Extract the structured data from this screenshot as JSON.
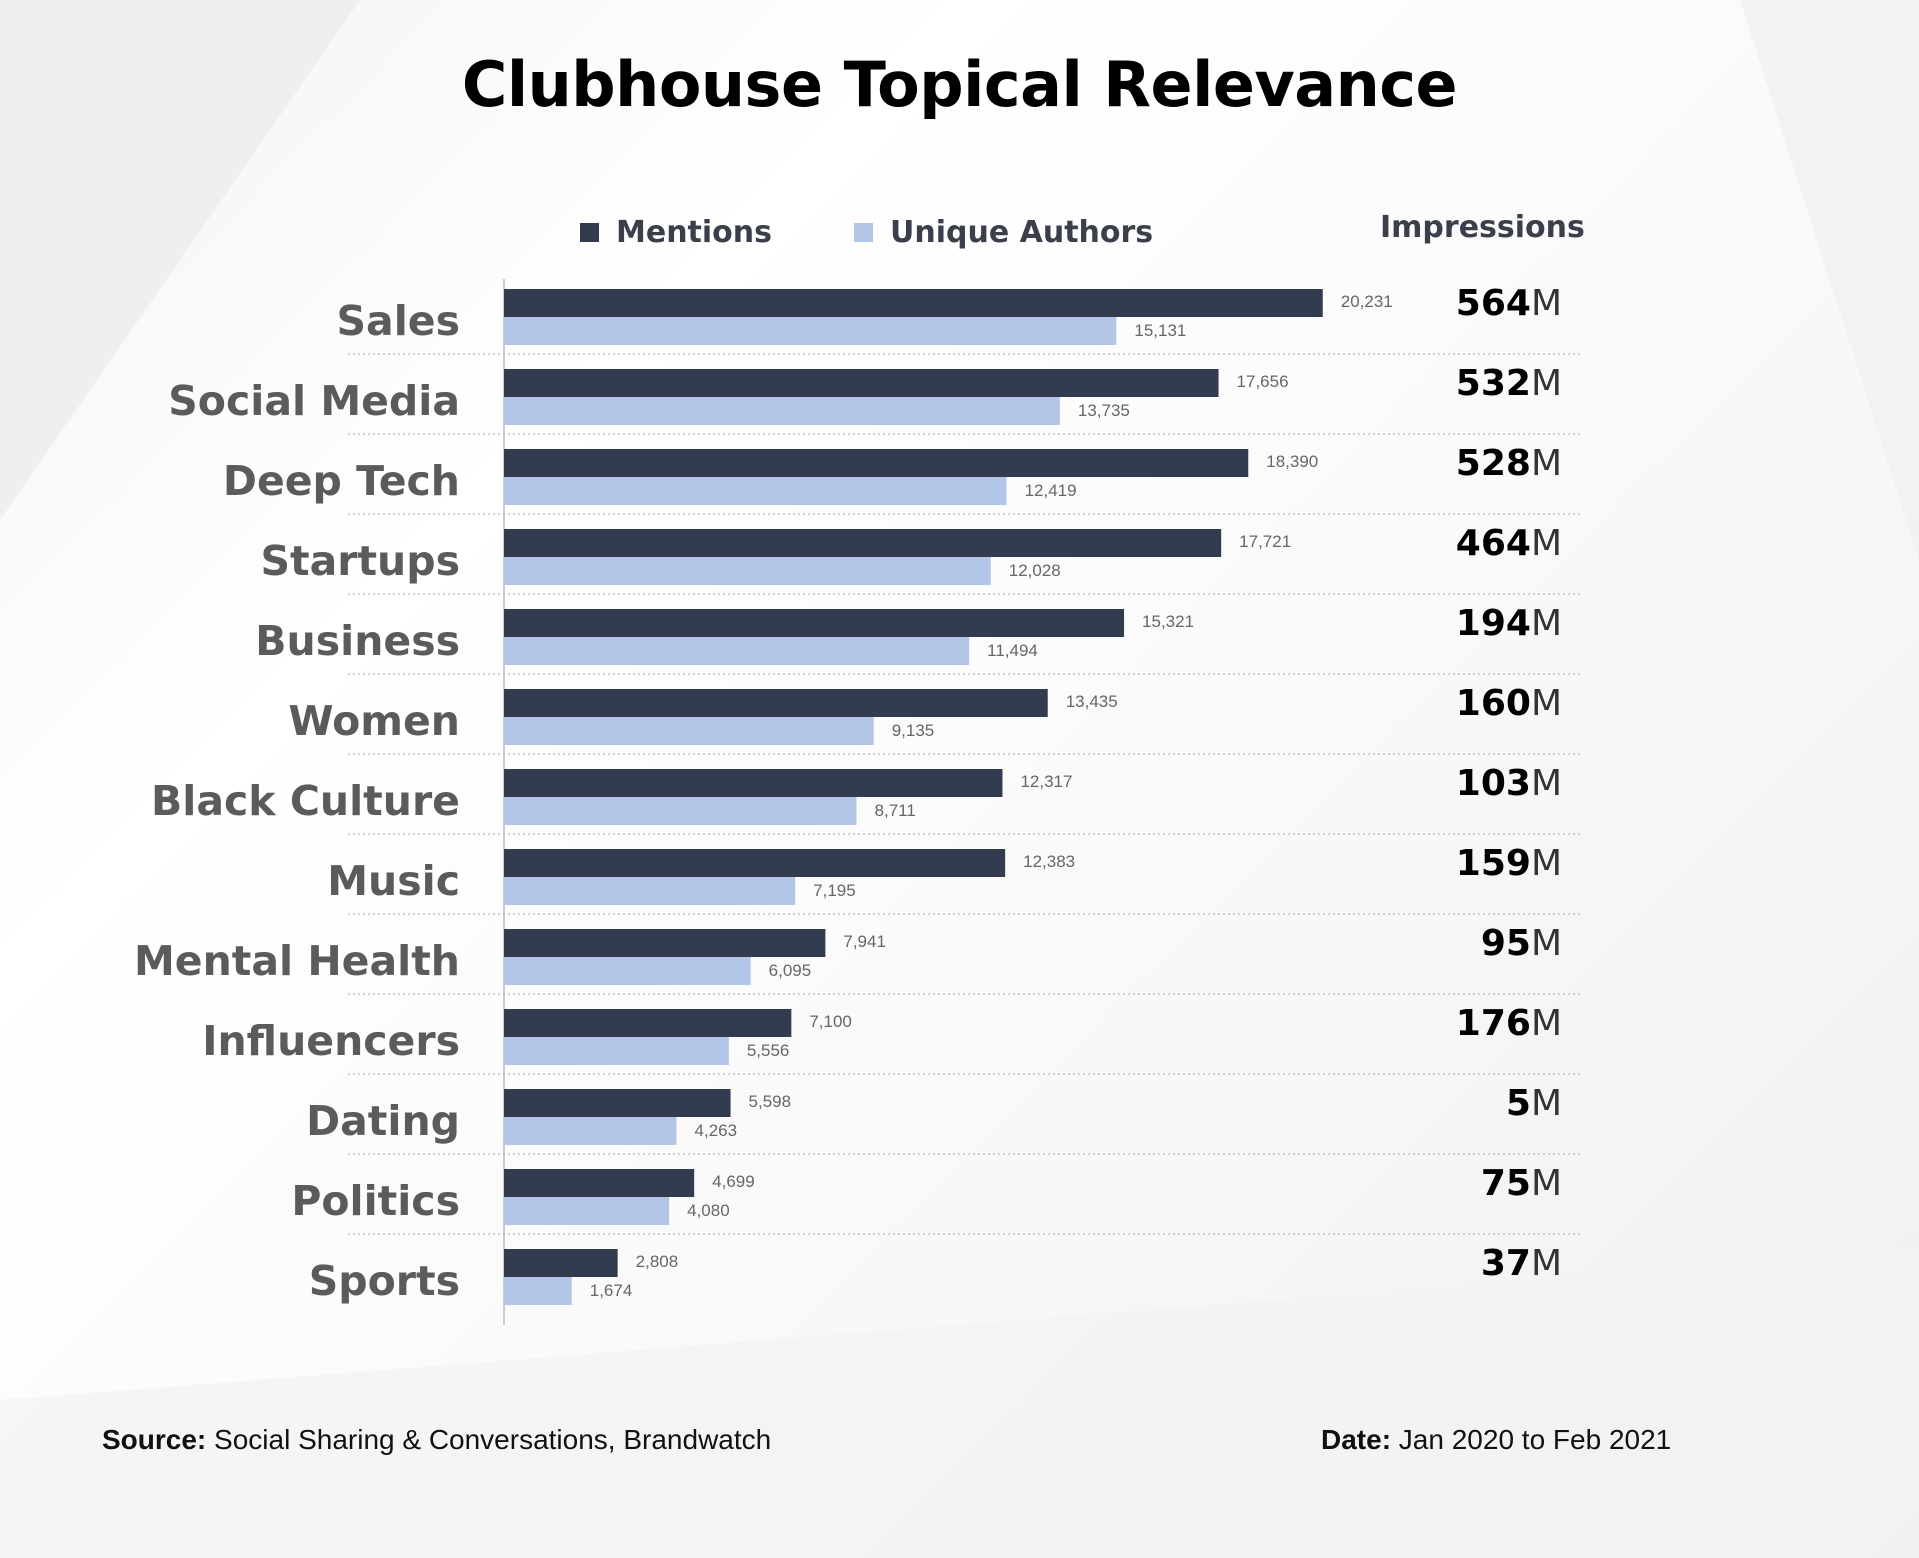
{
  "title": "Clubhouse Topical Relevance",
  "legend": {
    "mentions": "Mentions",
    "unique_authors": "Unique Authors"
  },
  "impressions_header": "Impressions",
  "colors": {
    "mentions": "#323c4e",
    "unique_authors": "#b4c6e7",
    "category_label": "#5b5b5b",
    "impressions": "#000000"
  },
  "impressions_unit": "M",
  "chart_data": {
    "type": "bar",
    "orientation": "horizontal",
    "title": "Clubhouse Topical Relevance",
    "categories": [
      "Sales",
      "Social Media",
      "Deep Tech",
      "Startups",
      "Business",
      "Women",
      "Black Culture",
      "Music",
      "Mental Health",
      "Influencers",
      "Dating",
      "Politics",
      "Sports"
    ],
    "series": [
      {
        "name": "Mentions",
        "values": [
          20231,
          17656,
          18390,
          17721,
          15321,
          13435,
          12317,
          12383,
          7941,
          7100,
          5598,
          4699,
          2808
        ],
        "labels": [
          "20,231",
          "17,656",
          "18,390",
          "17,721",
          "15,321",
          "13,435",
          "12,317",
          "12,383",
          "7,941",
          "7,100",
          "5,598",
          "4,699",
          "2,808"
        ]
      },
      {
        "name": "Unique Authors",
        "values": [
          15131,
          13735,
          12419,
          12028,
          11494,
          9135,
          8711,
          7195,
          6095,
          5556,
          4263,
          4080,
          1674
        ],
        "labels": [
          "15,131",
          "13,735",
          "12,419",
          "12,028",
          "11,494",
          "9,135",
          "8,711",
          "7,195",
          "6,095",
          "5,556",
          "4,263",
          "4,080",
          "1,674"
        ]
      }
    ],
    "impressions": [
      "564",
      "532",
      "528",
      "464",
      "194",
      "160",
      "103",
      "159",
      "95",
      "176",
      "5",
      "75",
      "37"
    ],
    "xlim": [
      0,
      25500
    ],
    "grid": false,
    "legend_position": "top"
  },
  "footer": {
    "source_label": "Source:",
    "source_text": "Social Sharing & Conversations, Brandwatch",
    "date_label": "Date:",
    "date_text": "Jan 2020 to Feb 2021"
  }
}
